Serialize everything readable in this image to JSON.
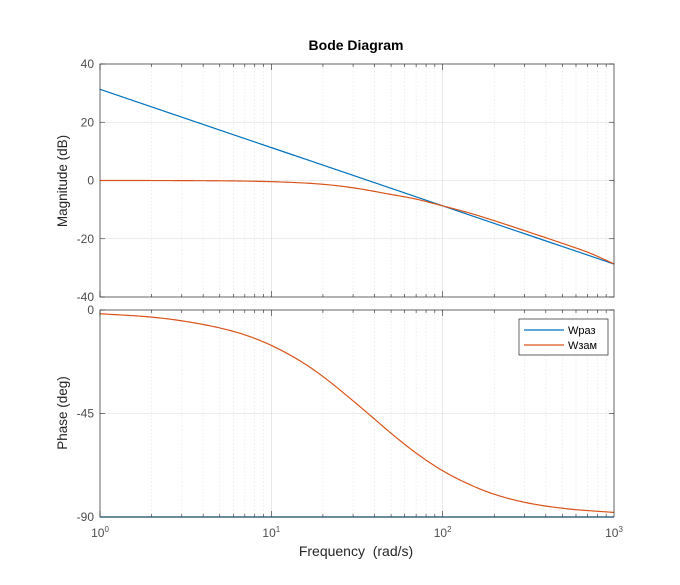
{
  "chart_data": {
    "type": "line",
    "title": "Bode Diagram",
    "xlabel": "Frequency  (rad/s)",
    "xscale": "log",
    "xlim": [
      1,
      1000
    ],
    "x_ticks": [
      1,
      10,
      100,
      1000
    ],
    "grid": true,
    "legend": {
      "placement": "top-right",
      "entries": [
        "Wраз",
        "Wзам"
      ]
    },
    "magnitude": {
      "ylabel": "Magnitude (dB)",
      "ylim": [
        -40,
        40
      ],
      "y_ticks": [
        "40",
        "20",
        "0",
        "-20",
        "-40"
      ],
      "series": [
        {
          "name": "Wраз",
          "color": "#0072bd",
          "x": [
            1,
            10,
            100,
            1000
          ],
          "values": [
            31.3,
            11.3,
            -8.7,
            -28.7
          ]
        },
        {
          "name": "Wзам",
          "color": "#d95319",
          "x": [
            1,
            3,
            10,
            20,
            30,
            50,
            70,
            100,
            150,
            200,
            300,
            500,
            700,
            1000
          ],
          "values": [
            0,
            -0.04,
            -0.4,
            -1.3,
            -2.5,
            -4.8,
            -6.4,
            -8.7,
            -11.5,
            -13.8,
            -17.2,
            -21.6,
            -24.6,
            -28.6
          ]
        }
      ]
    },
    "phase": {
      "ylabel": "Phase (deg)",
      "ylim": [
        -90,
        0
      ],
      "y_ticks": [
        "0",
        "-45",
        "-90"
      ],
      "series": [
        {
          "name": "Wраз",
          "color": "#0072bd",
          "x": [
            1,
            1000
          ],
          "values": [
            -90,
            -90
          ]
        },
        {
          "name": "Wзам",
          "color": "#d95319",
          "x": [
            1,
            2,
            3,
            5,
            7,
            10,
            15,
            20,
            30,
            40,
            50,
            70,
            100,
            150,
            200,
            300,
            500,
            700,
            1000
          ],
          "values": [
            -1.6,
            -3.1,
            -4.7,
            -7.8,
            -10.8,
            -15.4,
            -22.5,
            -28.9,
            -39.5,
            -47.4,
            -53.6,
            -62.2,
            -69.9,
            -76.5,
            -80.1,
            -83.6,
            -86.2,
            -87.2,
            -88.0
          ]
        }
      ]
    }
  }
}
